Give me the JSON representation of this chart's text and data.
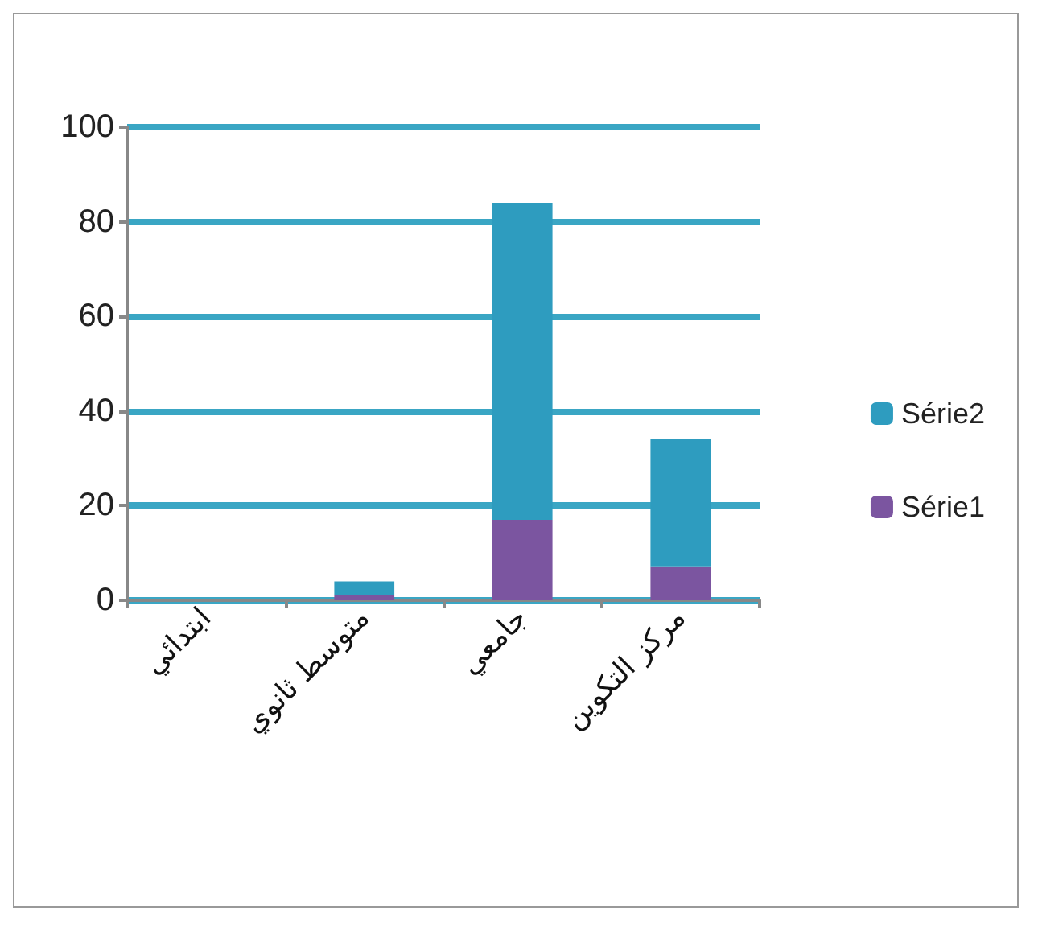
{
  "chart_data": {
    "type": "bar",
    "stacked": true,
    "categories": [
      "ابتدائي",
      "متوسط ثانوي",
      "جامعي",
      "مركز التكوين"
    ],
    "series": [
      {
        "name": "Série1",
        "color": "#7b55a0",
        "values": [
          0,
          1,
          17,
          7
        ]
      },
      {
        "name": "Série2",
        "color": "#2e9cbf",
        "values": [
          0,
          3,
          67,
          27
        ]
      }
    ],
    "ylim": [
      0,
      100
    ],
    "yticks": [
      0,
      20,
      40,
      60,
      80,
      100
    ],
    "grid": "y",
    "legend": "right"
  }
}
